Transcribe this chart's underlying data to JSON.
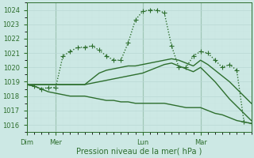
{
  "xlabel": "Pression niveau de la mer( hPa )",
  "background_color": "#cce8e4",
  "grid_color_major": "#b8d8d4",
  "grid_color_minor": "#c8e4e0",
  "line_color": "#2d6e2d",
  "ylim": [
    1015.5,
    1024.5
  ],
  "yticks": [
    1016,
    1017,
    1018,
    1019,
    1020,
    1021,
    1022,
    1023,
    1024
  ],
  "day_labels": [
    "Dim",
    "Mer",
    "Lun",
    "Mar"
  ],
  "day_positions": [
    0,
    12,
    48,
    72
  ],
  "xlim": [
    0,
    93
  ],
  "series": [
    {
      "name": "dotted_marker",
      "x": [
        0,
        3,
        6,
        9,
        12,
        15,
        18,
        21,
        24,
        27,
        30,
        33,
        36,
        39,
        42,
        45,
        48,
        51,
        54,
        57,
        60,
        63,
        66,
        69,
        72,
        75,
        78,
        81,
        84,
        87,
        90,
        93
      ],
      "y": [
        1018.8,
        1018.7,
        1018.5,
        1018.6,
        1018.6,
        1020.8,
        1021.1,
        1021.4,
        1021.4,
        1021.5,
        1021.2,
        1020.8,
        1020.5,
        1020.5,
        1021.7,
        1023.3,
        1023.9,
        1024.0,
        1024.0,
        1023.8,
        1021.5,
        1020.0,
        1020.0,
        1020.8,
        1021.1,
        1021.0,
        1020.5,
        1020.0,
        1020.2,
        1019.8,
        1016.2,
        1016.1
      ],
      "linestyle": "dotted",
      "marker": "+",
      "linewidth": 1.0,
      "markersize": 4
    },
    {
      "name": "solid_line_upper",
      "x": [
        0,
        3,
        6,
        9,
        12,
        15,
        18,
        21,
        24,
        27,
        30,
        33,
        36,
        39,
        42,
        45,
        48,
        51,
        54,
        57,
        60,
        63,
        66,
        69,
        72,
        75,
        78,
        81,
        84,
        87,
        90,
        93
      ],
      "y": [
        1018.8,
        1018.8,
        1018.8,
        1018.8,
        1018.8,
        1018.8,
        1018.8,
        1018.8,
        1018.8,
        1019.2,
        1019.6,
        1019.8,
        1019.9,
        1020.0,
        1020.1,
        1020.1,
        1020.2,
        1020.3,
        1020.4,
        1020.5,
        1020.6,
        1020.5,
        1020.3,
        1020.1,
        1020.5,
        1020.2,
        1019.8,
        1019.4,
        1019.0,
        1018.5,
        1018.0,
        1017.5
      ],
      "linestyle": "solid",
      "marker": null,
      "linewidth": 1.0,
      "markersize": 0
    },
    {
      "name": "solid_line_middle",
      "x": [
        0,
        3,
        6,
        9,
        12,
        15,
        18,
        21,
        24,
        27,
        30,
        33,
        36,
        39,
        42,
        45,
        48,
        51,
        54,
        57,
        60,
        63,
        66,
        69,
        72,
        75,
        78,
        81,
        84,
        87,
        90,
        93
      ],
      "y": [
        1018.8,
        1018.8,
        1018.8,
        1018.8,
        1018.8,
        1018.8,
        1018.8,
        1018.8,
        1018.8,
        1018.9,
        1019.0,
        1019.1,
        1019.2,
        1019.3,
        1019.4,
        1019.5,
        1019.6,
        1019.8,
        1020.0,
        1020.2,
        1020.3,
        1020.1,
        1019.9,
        1019.7,
        1020.0,
        1019.5,
        1019.0,
        1018.4,
        1017.8,
        1017.3,
        1016.8,
        1016.3
      ],
      "linestyle": "solid",
      "marker": null,
      "linewidth": 1.0,
      "markersize": 0
    },
    {
      "name": "solid_line_lower",
      "x": [
        0,
        3,
        6,
        9,
        12,
        15,
        18,
        21,
        24,
        27,
        30,
        33,
        36,
        39,
        42,
        45,
        48,
        51,
        54,
        57,
        60,
        63,
        66,
        69,
        72,
        75,
        78,
        81,
        84,
        87,
        90,
        93
      ],
      "y": [
        1018.8,
        1018.7,
        1018.5,
        1018.3,
        1018.2,
        1018.1,
        1018.0,
        1018.0,
        1018.0,
        1017.9,
        1017.8,
        1017.7,
        1017.7,
        1017.6,
        1017.6,
        1017.5,
        1017.5,
        1017.5,
        1017.5,
        1017.5,
        1017.4,
        1017.3,
        1017.2,
        1017.2,
        1017.2,
        1017.0,
        1016.8,
        1016.7,
        1016.5,
        1016.3,
        1016.2,
        1016.1
      ],
      "linestyle": "solid",
      "marker": null,
      "linewidth": 1.0,
      "markersize": 0
    }
  ],
  "figsize": [
    3.2,
    2.0
  ],
  "dpi": 100
}
